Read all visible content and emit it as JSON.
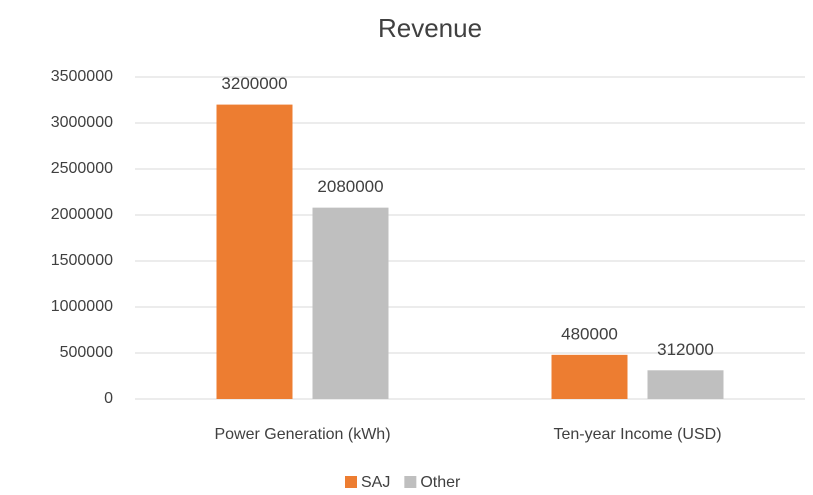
{
  "chart_data": {
    "type": "bar",
    "title": "Revenue",
    "categories": [
      "Power Generation (kWh)",
      "Ten-year Income (USD)"
    ],
    "series": [
      {
        "name": "SAJ",
        "color": "#ed7d31",
        "values": [
          3200000,
          480000
        ]
      },
      {
        "name": "Other",
        "color": "#bfbfbf",
        "values": [
          2080000,
          312000
        ]
      }
    ],
    "ylim": [
      0,
      3500000
    ],
    "yticks": [
      0,
      500000,
      1000000,
      1500000,
      2000000,
      2500000,
      3000000,
      3500000
    ],
    "grid": true,
    "legend": "bottom",
    "data_labels": true
  }
}
